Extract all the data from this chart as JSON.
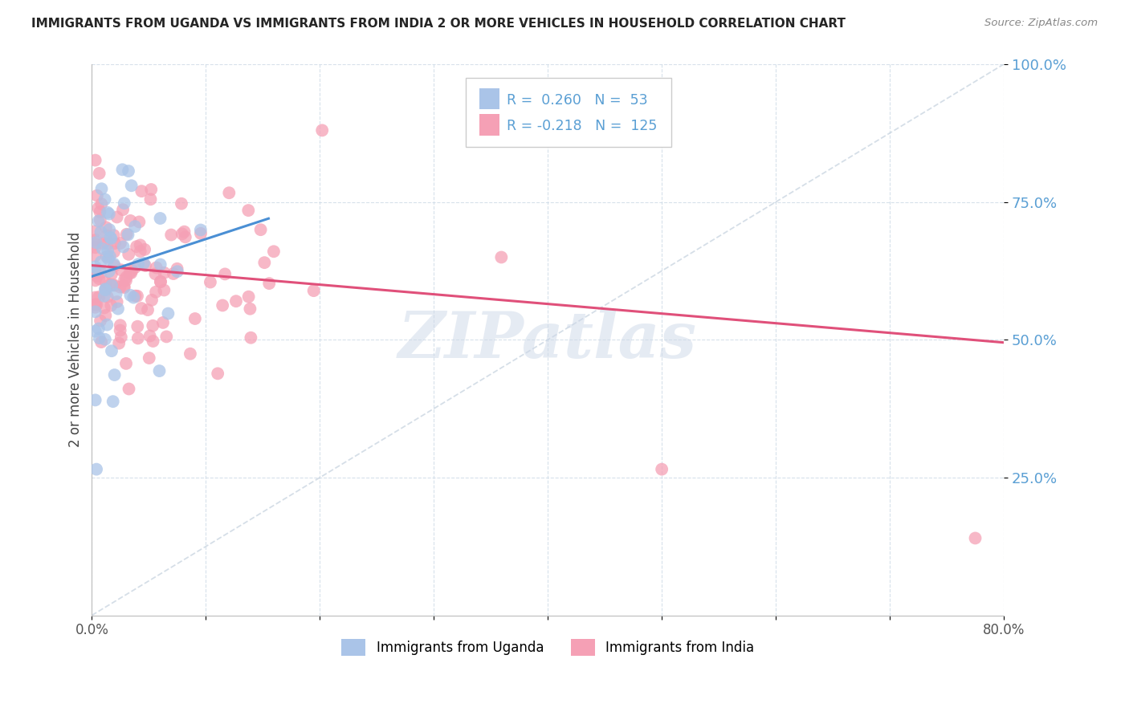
{
  "title": "IMMIGRANTS FROM UGANDA VS IMMIGRANTS FROM INDIA 2 OR MORE VEHICLES IN HOUSEHOLD CORRELATION CHART",
  "source": "Source: ZipAtlas.com",
  "ylabel_label": "2 or more Vehicles in Household",
  "legend_uganda": "Immigrants from Uganda",
  "legend_india": "Immigrants from India",
  "r_uganda": 0.26,
  "n_uganda": 53,
  "r_india": -0.218,
  "n_india": 125,
  "color_uganda": "#aac4e8",
  "color_india": "#f5a0b5",
  "color_uganda_line": "#4a8fd4",
  "color_india_line": "#e0507a",
  "color_diag": "#c8d4e0",
  "background": "#ffffff",
  "grid_color": "#d0dce8",
  "title_color": "#252525",
  "axis_color": "#5a9fd4",
  "watermark": "ZIPatlas",
  "xlim": [
    0.0,
    0.8
  ],
  "ylim": [
    0.0,
    1.0
  ],
  "india_line_x": [
    0.0,
    0.8
  ],
  "india_line_y": [
    0.635,
    0.495
  ],
  "uganda_line_x": [
    0.0,
    0.155
  ],
  "uganda_line_y": [
    0.615,
    0.72
  ]
}
